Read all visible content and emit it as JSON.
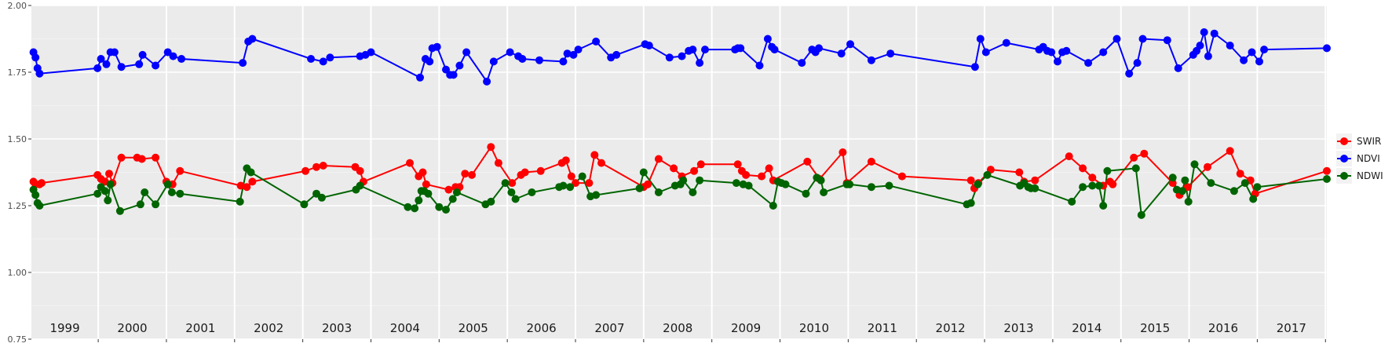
{
  "chart_data": {
    "type": "line",
    "title": "",
    "xlabel": "",
    "ylabel": "",
    "ylim": [
      0.75,
      2.0
    ],
    "xlim": [
      1998.0,
      2017.0
    ],
    "y_ticks": [
      "0.75",
      "1.00",
      "1.25",
      "1.50",
      "1.75",
      "2.00"
    ],
    "y_tick_values": [
      0.75,
      1.0,
      1.25,
      1.5,
      1.75,
      2.0
    ],
    "year_labels": [
      "1999",
      "2000",
      "2001",
      "2002",
      "2003",
      "2004",
      "2005",
      "2006",
      "2007",
      "2008",
      "2009",
      "2010",
      "2011",
      "2012",
      "2013",
      "2014",
      "2015",
      "2016",
      "2017"
    ],
    "year_boundaries": [
      1998.98,
      1999.98,
      2000.98,
      2001.98,
      2002.98,
      2003.98,
      2004.98,
      2005.98,
      2006.98,
      2007.98,
      2008.98,
      2009.98,
      2010.98,
      2011.98,
      2012.98,
      2013.98,
      2014.98,
      2015.98,
      2016.98
    ],
    "grid": true,
    "legend_position": "right",
    "series": [
      {
        "name": "SWIR",
        "color": "#ff0000",
        "points": [
          [
            1998.03,
            1.34
          ],
          [
            1998.06,
            1.33
          ],
          [
            1998.12,
            1.33
          ],
          [
            1998.15,
            1.335
          ],
          [
            1998.97,
            1.365
          ],
          [
            1999.02,
            1.35
          ],
          [
            1999.08,
            1.34
          ],
          [
            1999.14,
            1.37
          ],
          [
            1999.19,
            1.335
          ],
          [
            1999.32,
            1.43
          ],
          [
            1999.55,
            1.43
          ],
          [
            1999.62,
            1.425
          ],
          [
            1999.82,
            1.43
          ],
          [
            1999.98,
            1.34
          ],
          [
            2000.07,
            1.33
          ],
          [
            2000.18,
            1.38
          ],
          [
            2001.07,
            1.325
          ],
          [
            2001.16,
            1.32
          ],
          [
            2001.24,
            1.34
          ],
          [
            2002.02,
            1.38
          ],
          [
            2002.18,
            1.395
          ],
          [
            2002.28,
            1.4
          ],
          [
            2002.75,
            1.395
          ],
          [
            2002.82,
            1.38
          ],
          [
            2002.87,
            1.34
          ],
          [
            2003.55,
            1.41
          ],
          [
            2003.68,
            1.36
          ],
          [
            2003.74,
            1.375
          ],
          [
            2003.79,
            1.33
          ],
          [
            2004.12,
            1.31
          ],
          [
            2004.22,
            1.32
          ],
          [
            2004.28,
            1.32
          ],
          [
            2004.36,
            1.37
          ],
          [
            2004.46,
            1.365
          ],
          [
            2004.74,
            1.47
          ],
          [
            2004.85,
            1.41
          ],
          [
            2005.05,
            1.335
          ],
          [
            2005.18,
            1.365
          ],
          [
            2005.24,
            1.375
          ],
          [
            2005.47,
            1.38
          ],
          [
            2005.78,
            1.41
          ],
          [
            2005.84,
            1.42
          ],
          [
            2005.92,
            1.36
          ],
          [
            2005.98,
            1.335
          ],
          [
            2006.18,
            1.335
          ],
          [
            2006.26,
            1.44
          ],
          [
            2006.36,
            1.41
          ],
          [
            2006.98,
            1.32
          ],
          [
            2007.04,
            1.33
          ],
          [
            2007.2,
            1.425
          ],
          [
            2007.42,
            1.39
          ],
          [
            2007.54,
            1.36
          ],
          [
            2007.72,
            1.38
          ],
          [
            2007.82,
            1.405
          ],
          [
            2008.36,
            1.405
          ],
          [
            2008.42,
            1.38
          ],
          [
            2008.48,
            1.365
          ],
          [
            2008.71,
            1.36
          ],
          [
            2008.82,
            1.39
          ],
          [
            2008.88,
            1.345
          ],
          [
            2009.38,
            1.415
          ],
          [
            2009.56,
            1.35
          ],
          [
            2009.9,
            1.45
          ],
          [
            2009.96,
            1.335
          ],
          [
            2010.32,
            1.415
          ],
          [
            2010.77,
            1.36
          ],
          [
            2011.78,
            1.345
          ],
          [
            2011.83,
            1.315
          ],
          [
            2011.89,
            1.335
          ],
          [
            2012.07,
            1.385
          ],
          [
            2012.49,
            1.375
          ],
          [
            2012.56,
            1.34
          ],
          [
            2012.72,
            1.345
          ],
          [
            2013.22,
            1.435
          ],
          [
            2013.42,
            1.39
          ],
          [
            2013.56,
            1.355
          ],
          [
            2013.72,
            1.325
          ],
          [
            2013.82,
            1.34
          ],
          [
            2013.86,
            1.33
          ],
          [
            2014.17,
            1.43
          ],
          [
            2014.32,
            1.445
          ],
          [
            2014.74,
            1.335
          ],
          [
            2014.84,
            1.29
          ],
          [
            2014.96,
            1.32
          ],
          [
            2015.25,
            1.395
          ],
          [
            2015.58,
            1.455
          ],
          [
            2015.73,
            1.37
          ],
          [
            2015.88,
            1.345
          ],
          [
            2015.95,
            1.295
          ],
          [
            2017.0,
            1.38
          ]
        ]
      },
      {
        "name": "NDVI",
        "color": "#0000ff",
        "points": [
          [
            1998.03,
            1.825
          ],
          [
            1998.06,
            1.805
          ],
          [
            1998.09,
            1.765
          ],
          [
            1998.12,
            1.745
          ],
          [
            1998.97,
            1.765
          ],
          [
            1999.02,
            1.8
          ],
          [
            1999.1,
            1.78
          ],
          [
            1999.16,
            1.825
          ],
          [
            1999.22,
            1.825
          ],
          [
            1999.32,
            1.77
          ],
          [
            1999.58,
            1.78
          ],
          [
            1999.63,
            1.815
          ],
          [
            1999.82,
            1.775
          ],
          [
            2000.0,
            1.825
          ],
          [
            2000.08,
            1.81
          ],
          [
            2000.2,
            1.8
          ],
          [
            2001.1,
            1.785
          ],
          [
            2001.18,
            1.865
          ],
          [
            2001.24,
            1.875
          ],
          [
            2002.1,
            1.8
          ],
          [
            2002.28,
            1.79
          ],
          [
            2002.38,
            1.805
          ],
          [
            2002.82,
            1.81
          ],
          [
            2002.9,
            1.815
          ],
          [
            2002.98,
            1.825
          ],
          [
            2003.7,
            1.73
          ],
          [
            2003.78,
            1.8
          ],
          [
            2003.84,
            1.79
          ],
          [
            2003.88,
            1.84
          ],
          [
            2003.95,
            1.845
          ],
          [
            2004.08,
            1.76
          ],
          [
            2004.14,
            1.74
          ],
          [
            2004.19,
            1.74
          ],
          [
            2004.28,
            1.775
          ],
          [
            2004.38,
            1.825
          ],
          [
            2004.68,
            1.715
          ],
          [
            2004.78,
            1.79
          ],
          [
            2005.02,
            1.825
          ],
          [
            2005.14,
            1.81
          ],
          [
            2005.2,
            1.8
          ],
          [
            2005.45,
            1.795
          ],
          [
            2005.8,
            1.79
          ],
          [
            2005.86,
            1.82
          ],
          [
            2005.95,
            1.815
          ],
          [
            2006.02,
            1.835
          ],
          [
            2006.28,
            1.865
          ],
          [
            2006.5,
            1.805
          ],
          [
            2006.58,
            1.815
          ],
          [
            2007.0,
            1.855
          ],
          [
            2007.06,
            1.85
          ],
          [
            2007.36,
            1.805
          ],
          [
            2007.54,
            1.81
          ],
          [
            2007.64,
            1.83
          ],
          [
            2007.7,
            1.835
          ],
          [
            2007.8,
            1.785
          ],
          [
            2007.88,
            1.835
          ],
          [
            2008.32,
            1.835
          ],
          [
            2008.36,
            1.84
          ],
          [
            2008.4,
            1.84
          ],
          [
            2008.68,
            1.775
          ],
          [
            2008.8,
            1.875
          ],
          [
            2008.86,
            1.845
          ],
          [
            2008.9,
            1.835
          ],
          [
            2009.3,
            1.785
          ],
          [
            2009.45,
            1.835
          ],
          [
            2009.5,
            1.825
          ],
          [
            2009.55,
            1.84
          ],
          [
            2009.88,
            1.82
          ],
          [
            2010.01,
            1.855
          ],
          [
            2010.32,
            1.795
          ],
          [
            2010.6,
            1.82
          ],
          [
            2011.84,
            1.77
          ],
          [
            2011.92,
            1.875
          ],
          [
            2012.0,
            1.825
          ],
          [
            2012.3,
            1.86
          ],
          [
            2012.78,
            1.835
          ],
          [
            2012.84,
            1.845
          ],
          [
            2012.9,
            1.83
          ],
          [
            2012.96,
            1.825
          ],
          [
            2013.05,
            1.79
          ],
          [
            2013.12,
            1.825
          ],
          [
            2013.18,
            1.83
          ],
          [
            2013.5,
            1.785
          ],
          [
            2013.72,
            1.825
          ],
          [
            2013.92,
            1.875
          ],
          [
            2014.1,
            1.745
          ],
          [
            2014.22,
            1.785
          ],
          [
            2014.3,
            1.875
          ],
          [
            2014.66,
            1.87
          ],
          [
            2014.82,
            1.765
          ],
          [
            2015.04,
            1.815
          ],
          [
            2015.09,
            1.83
          ],
          [
            2015.14,
            1.85
          ],
          [
            2015.2,
            1.9
          ],
          [
            2015.26,
            1.81
          ],
          [
            2015.35,
            1.895
          ],
          [
            2015.58,
            1.85
          ],
          [
            2015.78,
            1.795
          ],
          [
            2015.9,
            1.825
          ],
          [
            2016.01,
            1.79
          ],
          [
            2016.08,
            1.835
          ],
          [
            2017.0,
            1.84
          ]
        ]
      },
      {
        "name": "NDWI",
        "color": "#006400",
        "points": [
          [
            1998.03,
            1.31
          ],
          [
            1998.06,
            1.29
          ],
          [
            1998.09,
            1.26
          ],
          [
            1998.12,
            1.25
          ],
          [
            1998.97,
            1.295
          ],
          [
            1999.02,
            1.32
          ],
          [
            1999.08,
            1.305
          ],
          [
            1999.12,
            1.27
          ],
          [
            1999.16,
            1.33
          ],
          [
            1999.3,
            1.23
          ],
          [
            1999.6,
            1.255
          ],
          [
            1999.66,
            1.3
          ],
          [
            1999.82,
            1.255
          ],
          [
            2000.0,
            1.33
          ],
          [
            2000.06,
            1.3
          ],
          [
            2000.18,
            1.295
          ],
          [
            2001.06,
            1.265
          ],
          [
            2001.16,
            1.39
          ],
          [
            2001.22,
            1.375
          ],
          [
            2002.0,
            1.255
          ],
          [
            2002.18,
            1.295
          ],
          [
            2002.26,
            1.28
          ],
          [
            2002.76,
            1.31
          ],
          [
            2002.82,
            1.325
          ],
          [
            2003.52,
            1.245
          ],
          [
            2003.62,
            1.24
          ],
          [
            2003.68,
            1.27
          ],
          [
            2003.72,
            1.305
          ],
          [
            2003.76,
            1.305
          ],
          [
            2003.82,
            1.295
          ],
          [
            2003.98,
            1.245
          ],
          [
            2004.08,
            1.235
          ],
          [
            2004.18,
            1.275
          ],
          [
            2004.24,
            1.3
          ],
          [
            2004.66,
            1.255
          ],
          [
            2004.74,
            1.265
          ],
          [
            2004.95,
            1.335
          ],
          [
            2005.04,
            1.3
          ],
          [
            2005.1,
            1.275
          ],
          [
            2005.34,
            1.3
          ],
          [
            2005.74,
            1.32
          ],
          [
            2005.8,
            1.325
          ],
          [
            2005.9,
            1.32
          ],
          [
            2006.08,
            1.36
          ],
          [
            2006.2,
            1.285
          ],
          [
            2006.28,
            1.29
          ],
          [
            2006.92,
            1.315
          ],
          [
            2006.98,
            1.375
          ],
          [
            2007.2,
            1.3
          ],
          [
            2007.44,
            1.325
          ],
          [
            2007.52,
            1.33
          ],
          [
            2007.56,
            1.345
          ],
          [
            2007.7,
            1.3
          ],
          [
            2007.8,
            1.345
          ],
          [
            2008.34,
            1.335
          ],
          [
            2008.44,
            1.33
          ],
          [
            2008.52,
            1.325
          ],
          [
            2008.88,
            1.25
          ],
          [
            2008.95,
            1.34
          ],
          [
            2009.0,
            1.335
          ],
          [
            2009.06,
            1.33
          ],
          [
            2009.36,
            1.295
          ],
          [
            2009.52,
            1.355
          ],
          [
            2009.58,
            1.345
          ],
          [
            2009.62,
            1.3
          ],
          [
            2009.96,
            1.33
          ],
          [
            2010.0,
            1.33
          ],
          [
            2010.32,
            1.32
          ],
          [
            2010.58,
            1.325
          ],
          [
            2011.72,
            1.255
          ],
          [
            2011.78,
            1.26
          ],
          [
            2011.88,
            1.33
          ],
          [
            2012.02,
            1.365
          ],
          [
            2012.5,
            1.325
          ],
          [
            2012.56,
            1.335
          ],
          [
            2012.62,
            1.32
          ],
          [
            2012.66,
            1.315
          ],
          [
            2012.72,
            1.315
          ],
          [
            2013.26,
            1.265
          ],
          [
            2013.42,
            1.32
          ],
          [
            2013.56,
            1.325
          ],
          [
            2013.66,
            1.325
          ],
          [
            2013.72,
            1.25
          ],
          [
            2013.78,
            1.38
          ],
          [
            2014.2,
            1.39
          ],
          [
            2014.28,
            1.215
          ],
          [
            2014.74,
            1.355
          ],
          [
            2014.8,
            1.31
          ],
          [
            2014.88,
            1.305
          ],
          [
            2014.92,
            1.345
          ],
          [
            2014.97,
            1.265
          ],
          [
            2015.06,
            1.405
          ],
          [
            2015.3,
            1.335
          ],
          [
            2015.64,
            1.305
          ],
          [
            2015.8,
            1.335
          ],
          [
            2015.92,
            1.275
          ],
          [
            2015.98,
            1.32
          ],
          [
            2017.0,
            1.35
          ]
        ]
      }
    ]
  }
}
